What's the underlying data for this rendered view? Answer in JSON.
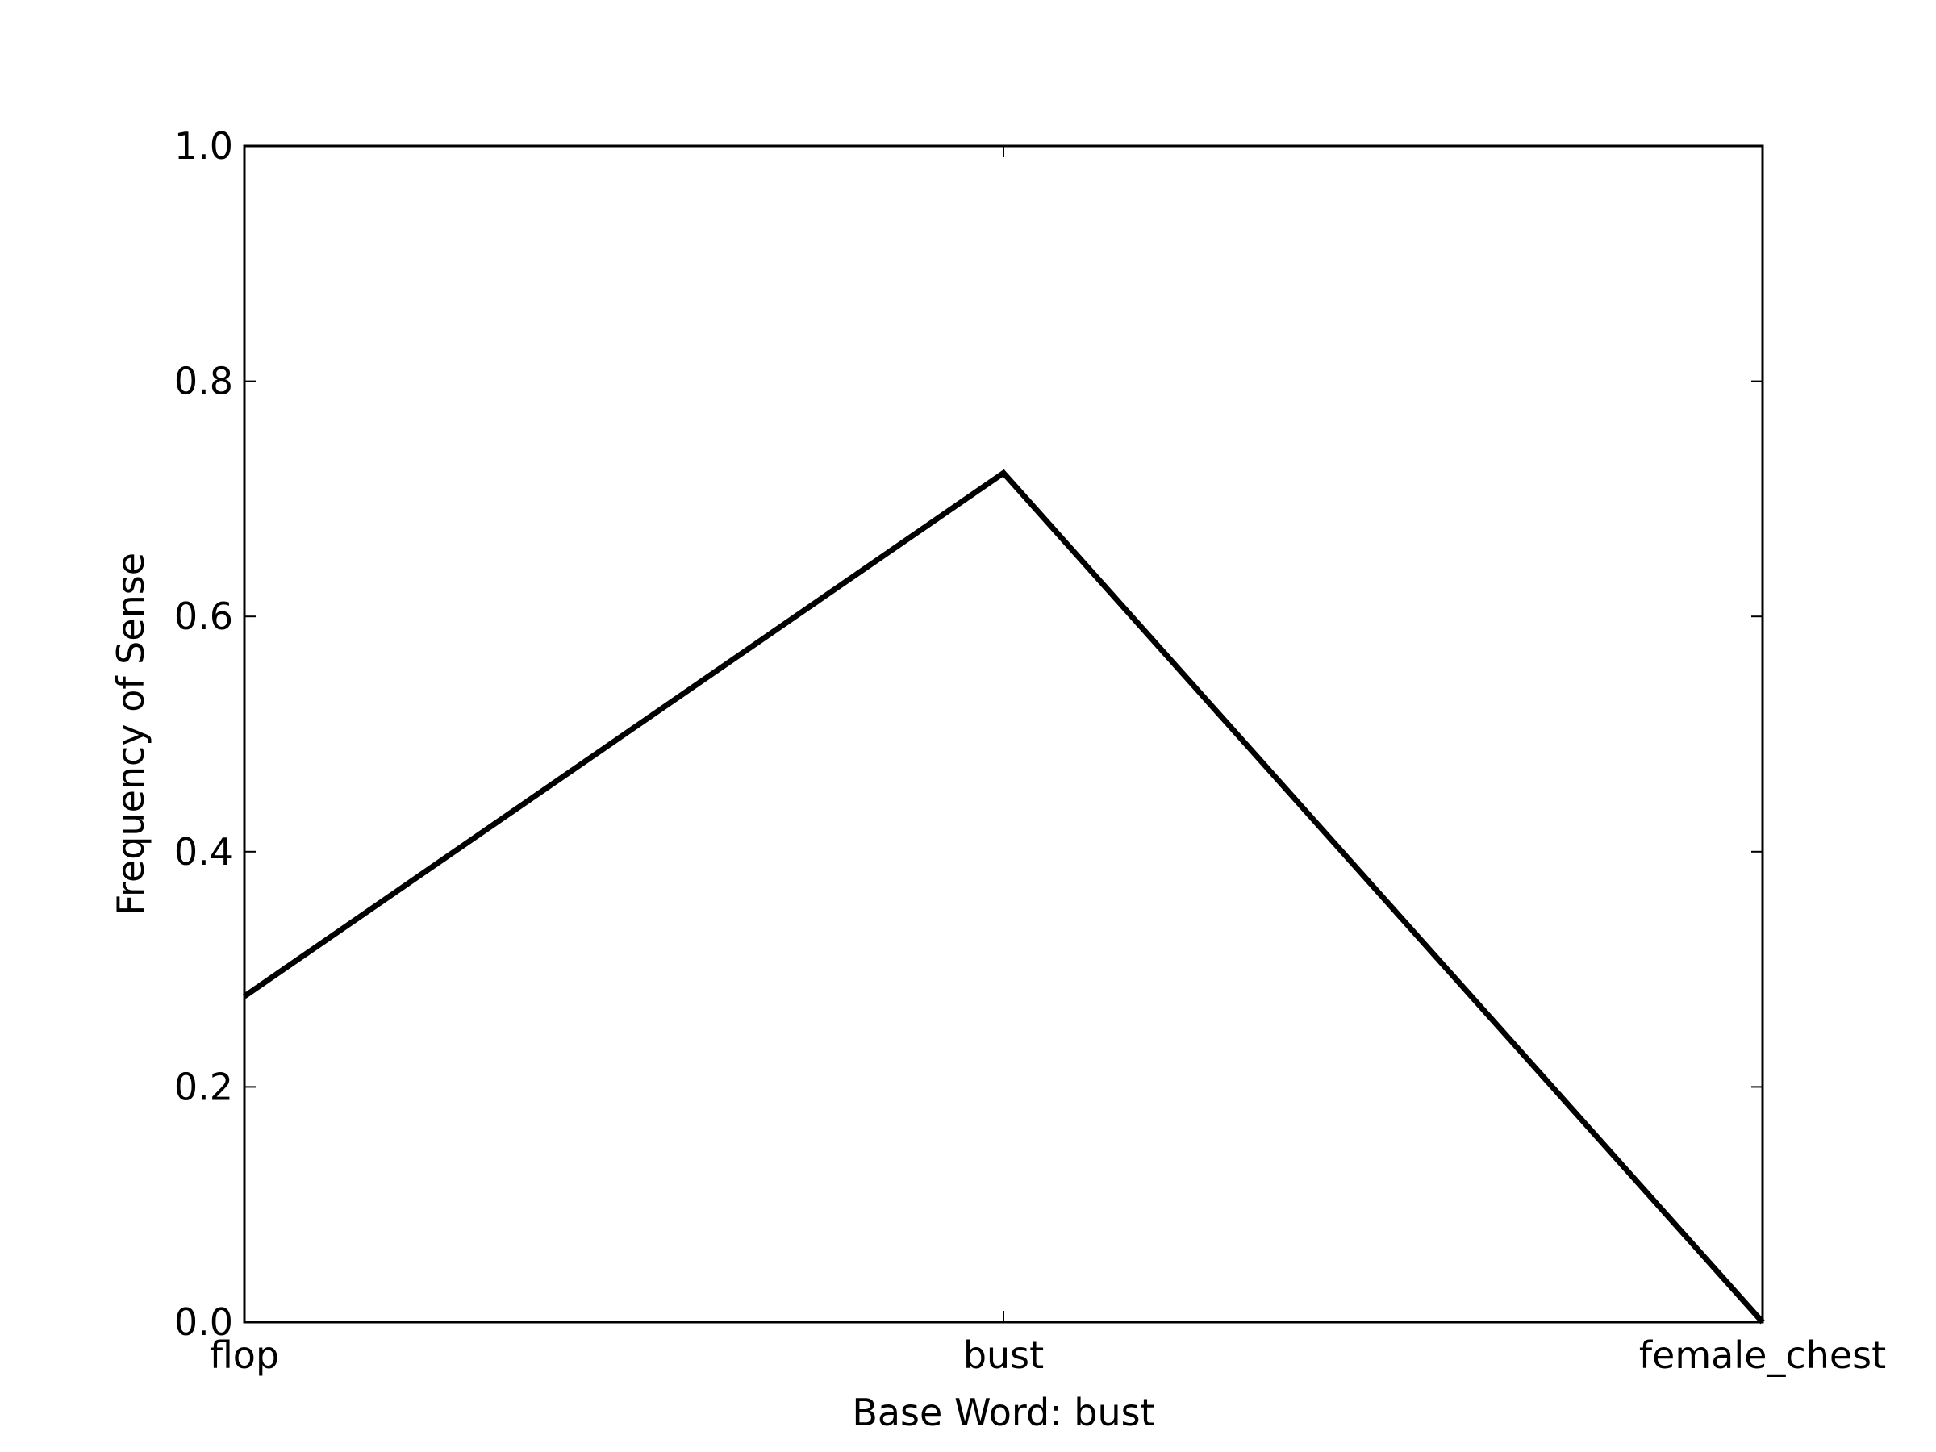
{
  "chart_data": {
    "type": "line",
    "title": "",
    "xlabel": "Base Word: bust",
    "ylabel": "Frequency of Sense",
    "categories": [
      "flop",
      "bust",
      "female_chest"
    ],
    "series": [
      {
        "values": [
          0.277,
          0.722,
          0.0
        ],
        "color": "#000000"
      }
    ],
    "ylim": [
      0.0,
      1.0
    ],
    "yticks": [
      "0.0",
      "0.2",
      "0.4",
      "0.6",
      "0.8",
      "1.0"
    ],
    "grid": false,
    "legend": "none"
  }
}
